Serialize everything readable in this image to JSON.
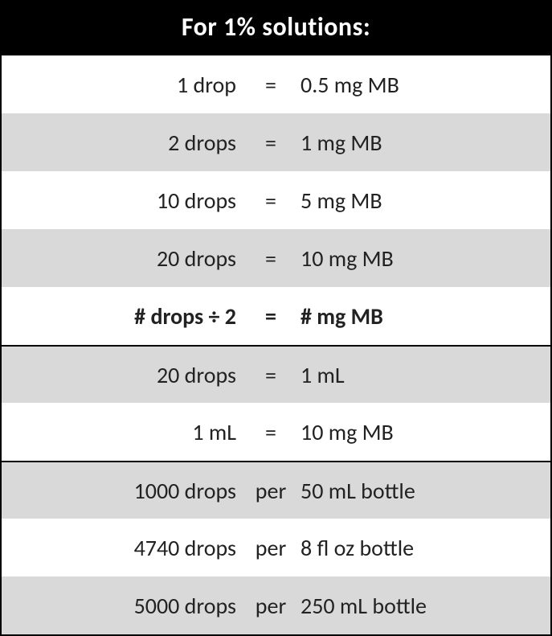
{
  "header": {
    "title": "For 1% solutions:"
  },
  "section1": {
    "rows": [
      {
        "left": "1 drop",
        "mid": "=",
        "right": "0.5 mg MB",
        "bg": "white",
        "bold": false
      },
      {
        "left": "2 drops",
        "mid": "=",
        "right": "1 mg MB",
        "bg": "gray",
        "bold": false
      },
      {
        "left": "10 drops",
        "mid": "=",
        "right": "5 mg MB",
        "bg": "white",
        "bold": false
      },
      {
        "left": "20 drops",
        "mid": "=",
        "right": "10 mg MB",
        "bg": "gray",
        "bold": false
      },
      {
        "left": "# drops ÷ 2",
        "mid": "=",
        "right": "# mg MB",
        "bg": "white",
        "bold": true
      }
    ]
  },
  "section2": {
    "rows": [
      {
        "left": "20 drops",
        "mid": "=",
        "right": "1 mL",
        "bg": "gray",
        "bold": false
      },
      {
        "left": "1 mL",
        "mid": "=",
        "right": "10 mg MB",
        "bg": "white",
        "bold": false
      }
    ]
  },
  "section3": {
    "rows": [
      {
        "left": "1000 drops",
        "mid": "per",
        "right": "50 mL bottle",
        "bg": "gray",
        "bold": false
      },
      {
        "left": "4740 drops",
        "mid": "per",
        "right": "8 fl oz bottle",
        "bg": "white",
        "bold": false
      },
      {
        "left": "5000 drops",
        "mid": "per",
        "right": "250 mL bottle",
        "bg": "gray",
        "bold": false
      }
    ]
  },
  "style": {
    "header_bg": "#000000",
    "header_color": "#ffffff",
    "gray_bg": "#d9d9d9",
    "white_bg": "#ffffff",
    "text_color": "#222222",
    "border_color": "#000000",
    "font_family": "Calibri",
    "header_fontsize": 32,
    "row_fontsize": 28
  }
}
